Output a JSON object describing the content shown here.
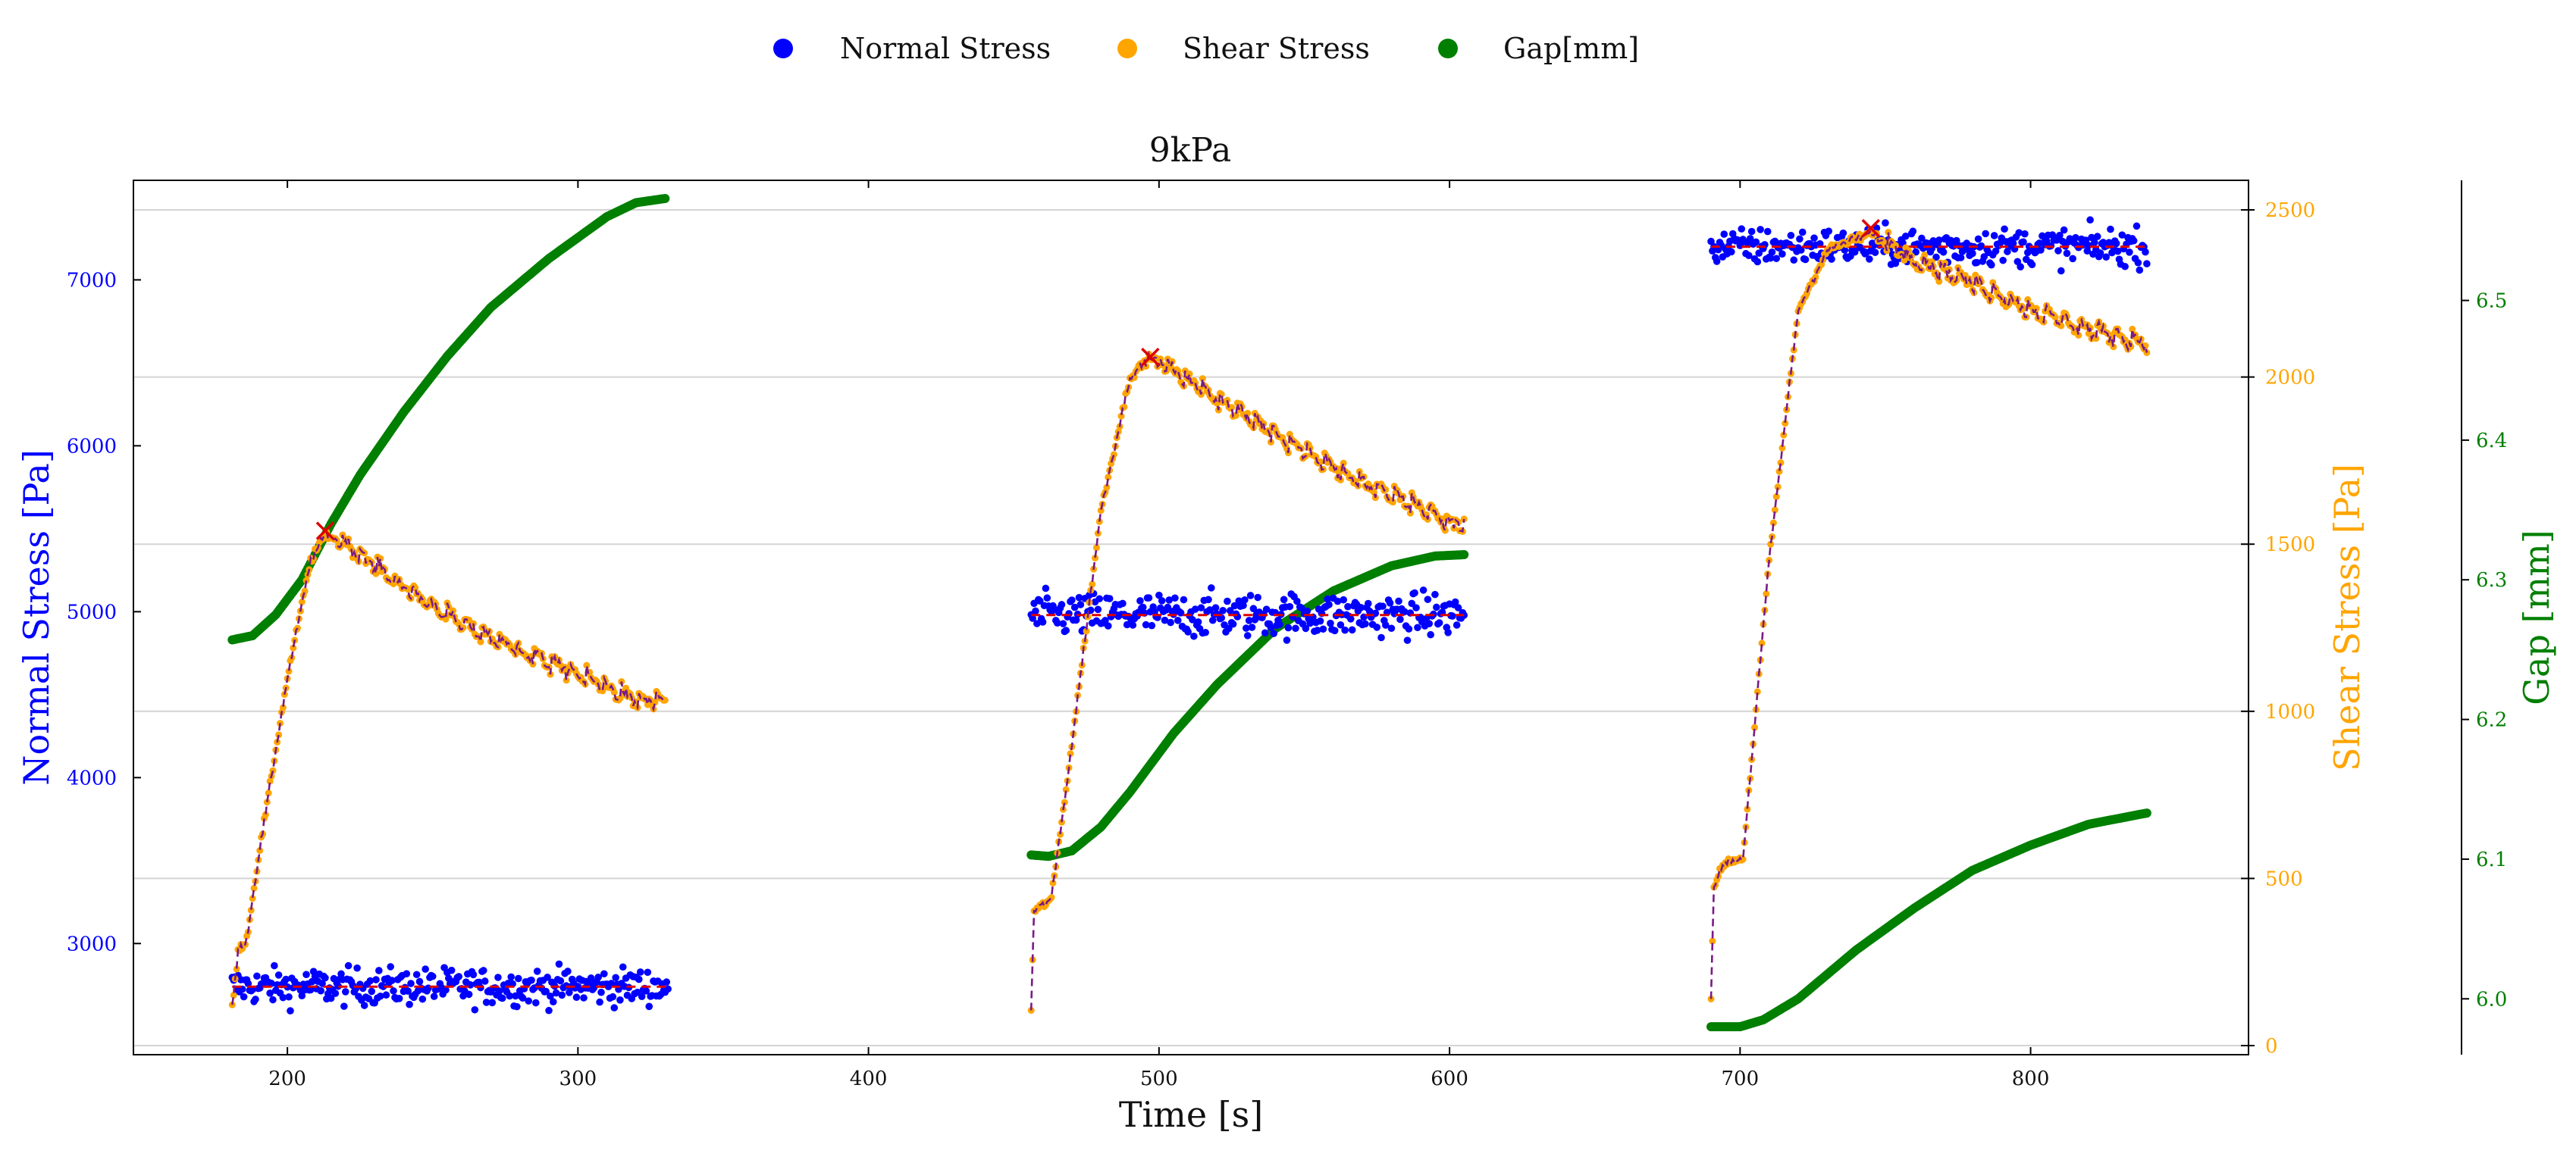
{
  "chart_data": {
    "type": "scatter",
    "title": "9kPa",
    "xlabel": "Time [s]",
    "ylabel_left": "Normal Stress [Pa]",
    "ylabel_right": "Shear Stress [Pa]",
    "ylabel_right2": "Gap [mm]",
    "xlim": [
      147,
      875
    ],
    "ylim_normal": [
      2330,
      7600
    ],
    "ylim_shear": [
      0,
      2500
    ],
    "ylim_gap": [
      5.96,
      6.586
    ],
    "x_ticks": [
      "200",
      "300",
      "400",
      "500",
      "600",
      "700",
      "800"
    ],
    "normal_ticks": [
      "3000",
      "4000",
      "5000",
      "6000",
      "7000"
    ],
    "shear_ticks": [
      "0",
      "500",
      "1000",
      "1500",
      "2000",
      "2500"
    ],
    "gap_ticks": [
      "6.0",
      "6.1",
      "6.2",
      "6.3",
      "6.4",
      "6.5"
    ],
    "grid": "horizontal at shear-stress ticks",
    "legend_placement": "top-center, outside plot",
    "colors": {
      "normal": "#0000ff",
      "shear": "#ffa500",
      "gap": "#007f00",
      "fit": "#dd0000",
      "peak_marker": "#dd0000"
    },
    "legend": [
      {
        "label": "Normal Stress",
        "color": "#0000ff"
      },
      {
        "label": "Shear Stress",
        "color": "#ffa500"
      },
      {
        "label": "Gap[mm]",
        "color": "#007f00"
      }
    ],
    "segments": [
      {
        "normal_stress": {
          "t_start": 181,
          "t_end": 331,
          "mean": 2740,
          "scatter": 55
        },
        "shear_stress": [
          [
            181,
            110
          ],
          [
            183,
            280
          ],
          [
            186,
            320
          ],
          [
            190,
            560
          ],
          [
            200,
            1100
          ],
          [
            208,
            1450
          ],
          [
            213,
            1530
          ],
          [
            220,
            1500
          ],
          [
            240,
            1370
          ],
          [
            260,
            1260
          ],
          [
            280,
            1180
          ],
          [
            300,
            1110
          ],
          [
            320,
            1030
          ],
          [
            330,
            1030
          ]
        ],
        "shear_peak": {
          "t": 213,
          "value": 1540
        },
        "gap": [
          [
            181,
            6.257
          ],
          [
            188,
            6.26
          ],
          [
            196,
            6.275
          ],
          [
            205,
            6.3
          ],
          [
            215,
            6.34
          ],
          [
            225,
            6.375
          ],
          [
            240,
            6.42
          ],
          [
            255,
            6.46
          ],
          [
            270,
            6.495
          ],
          [
            290,
            6.53
          ],
          [
            310,
            6.56
          ],
          [
            320,
            6.57
          ],
          [
            330,
            6.573
          ]
        ]
      },
      {
        "normal_stress": {
          "t_start": 456,
          "t_end": 605,
          "mean": 4980,
          "scatter": 65
        },
        "shear_stress": [
          [
            456,
            110
          ],
          [
            457,
            400
          ],
          [
            460,
            420
          ],
          [
            463,
            440
          ],
          [
            470,
            900
          ],
          [
            480,
            1600
          ],
          [
            490,
            2000
          ],
          [
            497,
            2060
          ],
          [
            510,
            1990
          ],
          [
            530,
            1880
          ],
          [
            550,
            1780
          ],
          [
            570,
            1680
          ],
          [
            590,
            1610
          ],
          [
            600,
            1560
          ],
          [
            605,
            1560
          ]
        ],
        "shear_peak": {
          "t": 497,
          "value": 2060
        },
        "gap": [
          [
            456,
            6.103
          ],
          [
            462,
            6.102
          ],
          [
            470,
            6.106
          ],
          [
            480,
            6.123
          ],
          [
            490,
            6.148
          ],
          [
            505,
            6.19
          ],
          [
            520,
            6.225
          ],
          [
            540,
            6.265
          ],
          [
            560,
            6.292
          ],
          [
            580,
            6.31
          ],
          [
            595,
            6.317
          ],
          [
            605,
            6.318
          ]
        ]
      },
      {
        "normal_stress": {
          "t_start": 690,
          "t_end": 840,
          "mean": 7200,
          "scatter": 55
        },
        "shear_stress": [
          [
            690,
            140
          ],
          [
            691,
            480
          ],
          [
            695,
            550
          ],
          [
            701,
            560
          ],
          [
            710,
            1450
          ],
          [
            720,
            2200
          ],
          [
            730,
            2380
          ],
          [
            745,
            2430
          ],
          [
            760,
            2350
          ],
          [
            780,
            2280
          ],
          [
            800,
            2200
          ],
          [
            820,
            2140
          ],
          [
            840,
            2100
          ]
        ],
        "shear_peak": {
          "t": 745,
          "value": 2445
        },
        "gap": [
          [
            690,
            5.98
          ],
          [
            700,
            5.98
          ],
          [
            708,
            5.985
          ],
          [
            720,
            6.0
          ],
          [
            740,
            6.035
          ],
          [
            760,
            6.065
          ],
          [
            780,
            6.092
          ],
          [
            800,
            6.11
          ],
          [
            820,
            6.125
          ],
          [
            840,
            6.133
          ]
        ]
      }
    ]
  }
}
